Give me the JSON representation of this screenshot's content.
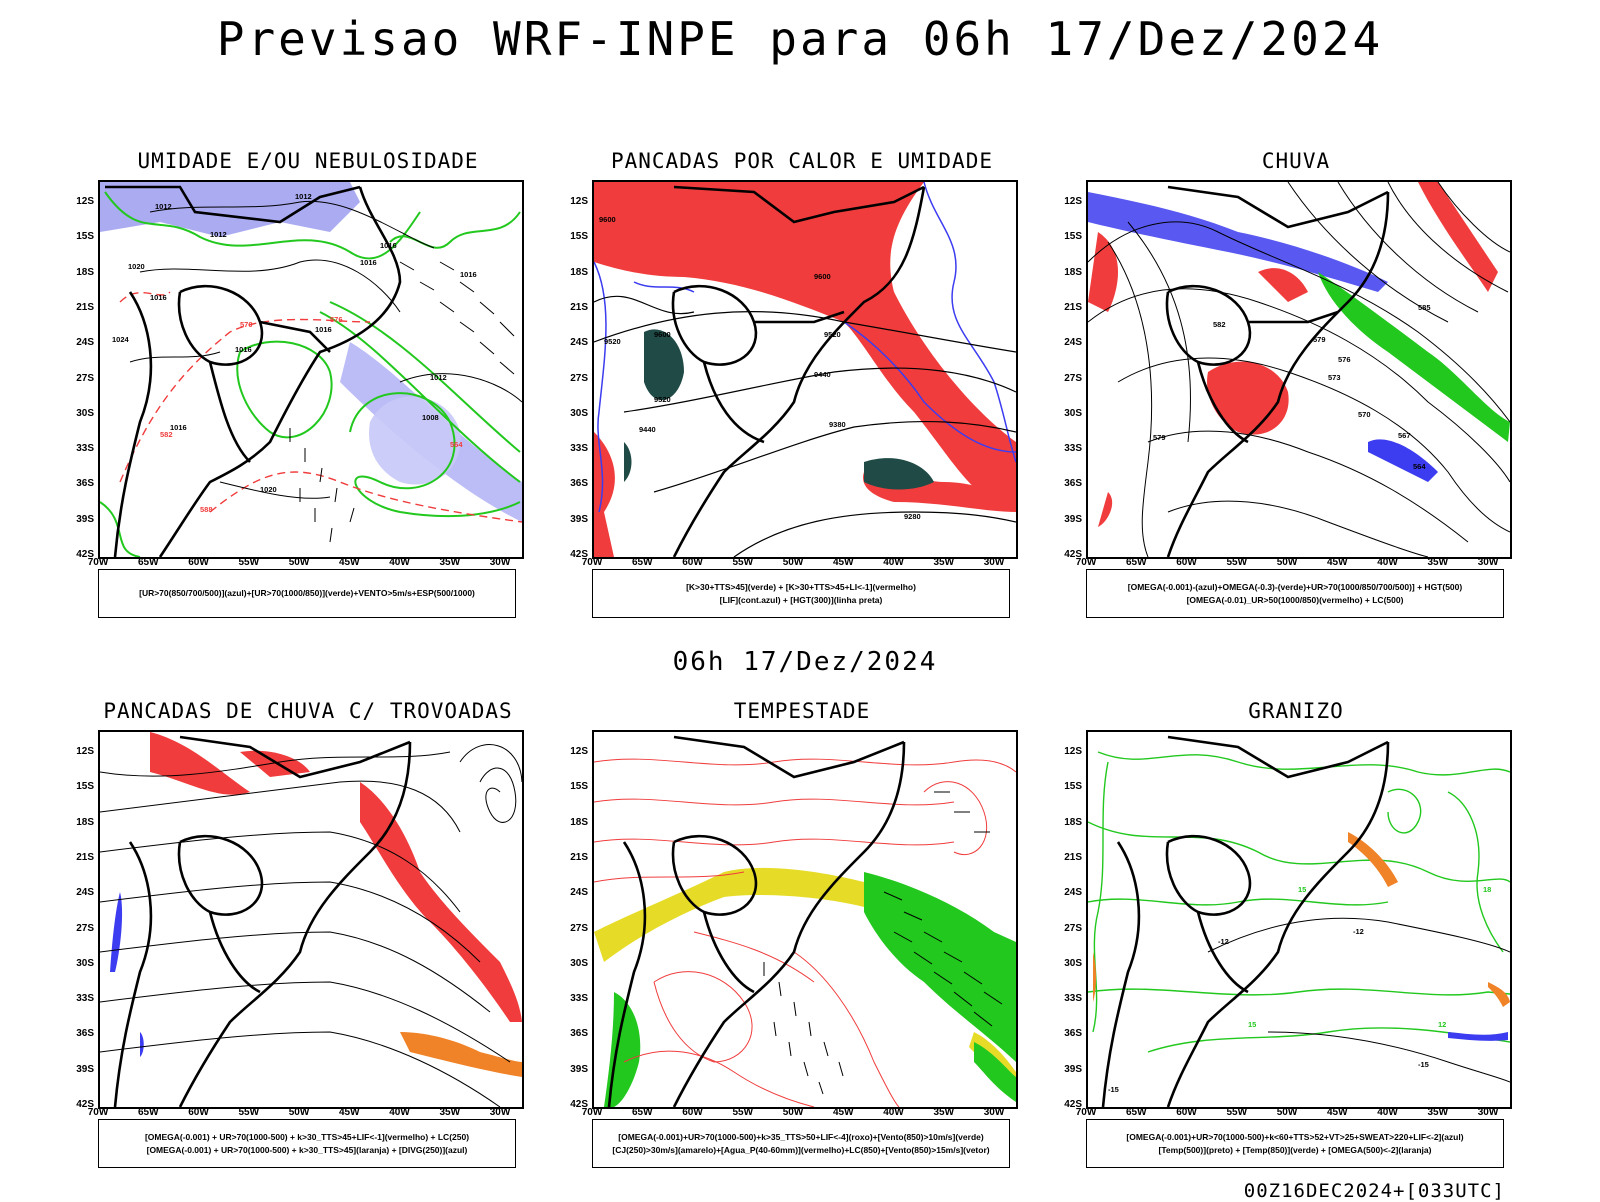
{
  "main_title": "Previsao WRF-INPE  para 06h 17/Dez/2024",
  "mid_title": "06h 17/Dez/2024",
  "footer": "00Z16DEC2024+[033UTC]",
  "lat_labels": [
    "12S",
    "15S",
    "18S",
    "21S",
    "24S",
    "27S",
    "30S",
    "33S",
    "36S",
    "39S",
    "42S"
  ],
  "lon_labels": [
    "70W",
    "65W",
    "60W",
    "55W",
    "50W",
    "45W",
    "40W",
    "35W",
    "30W"
  ],
  "panels": [
    {
      "title": "UMIDADE E/OU NEBULOSIDADE",
      "legend": [
        "[UR>70(850/700/500)](azul)+[UR>70(1000/850)](verde)+VENTO>5m/s+ESP(500/1000)"
      ]
    },
    {
      "title": "PANCADAS POR CALOR E UMIDADE",
      "legend": [
        "[K>30+TTS>45](verde) + [K>30+TTS>45+LI<-1](vermelho)",
        "[LIF](cont.azul) + [HGT(300)](linha preta)"
      ]
    },
    {
      "title": "CHUVA",
      "legend": [
        "[OMEGA(-0.001)-(azul)+OMEGA(-0.3)-(verde)+UR>70(1000/850/700/500)] + HGT(500)",
        "[OMEGA(-0.01)_UR>50(1000/850)(vermelho) + LC(500)"
      ]
    },
    {
      "title": "PANCADAS DE CHUVA C/ TROVOADAS",
      "legend": [
        "[OMEGA(-0.001) + UR>70(1000-500) + k>30_TTS>45+LIF<-1](vermelho) + LC(250)",
        "[OMEGA(-0.001) + UR>70(1000-500) + k>30_TTS>45](laranja) + [DIVG(250)](azul)"
      ]
    },
    {
      "title": "TEMPESTADE",
      "legend": [
        "[OMEGA(-0.001)+UR>70(1000-500)+k>35_TTS>50+LIF<-4](roxo)+[Vento(850)>10m/s](verde)",
        "[CJ(250)>30m/s](amarelo)+[Agua_P(40-60mm)](vermelho)+LC(850)+[Vento(850)>15m/s](vetor)"
      ]
    },
    {
      "title": "GRANIZO",
      "legend": [
        "[OMEGA(-0.001)+UR>70(1000-500)+k<60+TTS>52+VT>25+SWEAT>220+LIF<-2](azul)",
        "[Temp(500)](preto) + [Temp(850)](verde) + [OMEGA(500)<-2](laranja)"
      ]
    }
  ],
  "contour_labels": {
    "p1": [
      "1012",
      "1012",
      "1012",
      "1016",
      "1016",
      "1016",
      "1020",
      "1024",
      "1016",
      "1016",
      "1016",
      "1012",
      "1008",
      "1016",
      "1020",
      "570",
      "576",
      "582",
      "588",
      "564"
    ],
    "p2": [
      "9600",
      "9600",
      "9520",
      "9520",
      "9440",
      "9440",
      "9380",
      "9280",
      "9600",
      "9520"
    ],
    "p3": [
      "585",
      "582",
      "579",
      "576",
      "573",
      "570",
      "567",
      "564",
      "579"
    ],
    "p6": [
      "-12",
      "-12",
      "-15",
      "-15",
      "15",
      "15",
      "18",
      "12"
    ]
  },
  "colors": {
    "red": "#f03c3c",
    "blue": "#3c3cf0",
    "green": "#22c81e",
    "lilac": "#9c9cf0",
    "darkteal": "#1f4a45",
    "yellow": "#e6dc28",
    "orange": "#f08228",
    "purple": "#a000c8"
  }
}
